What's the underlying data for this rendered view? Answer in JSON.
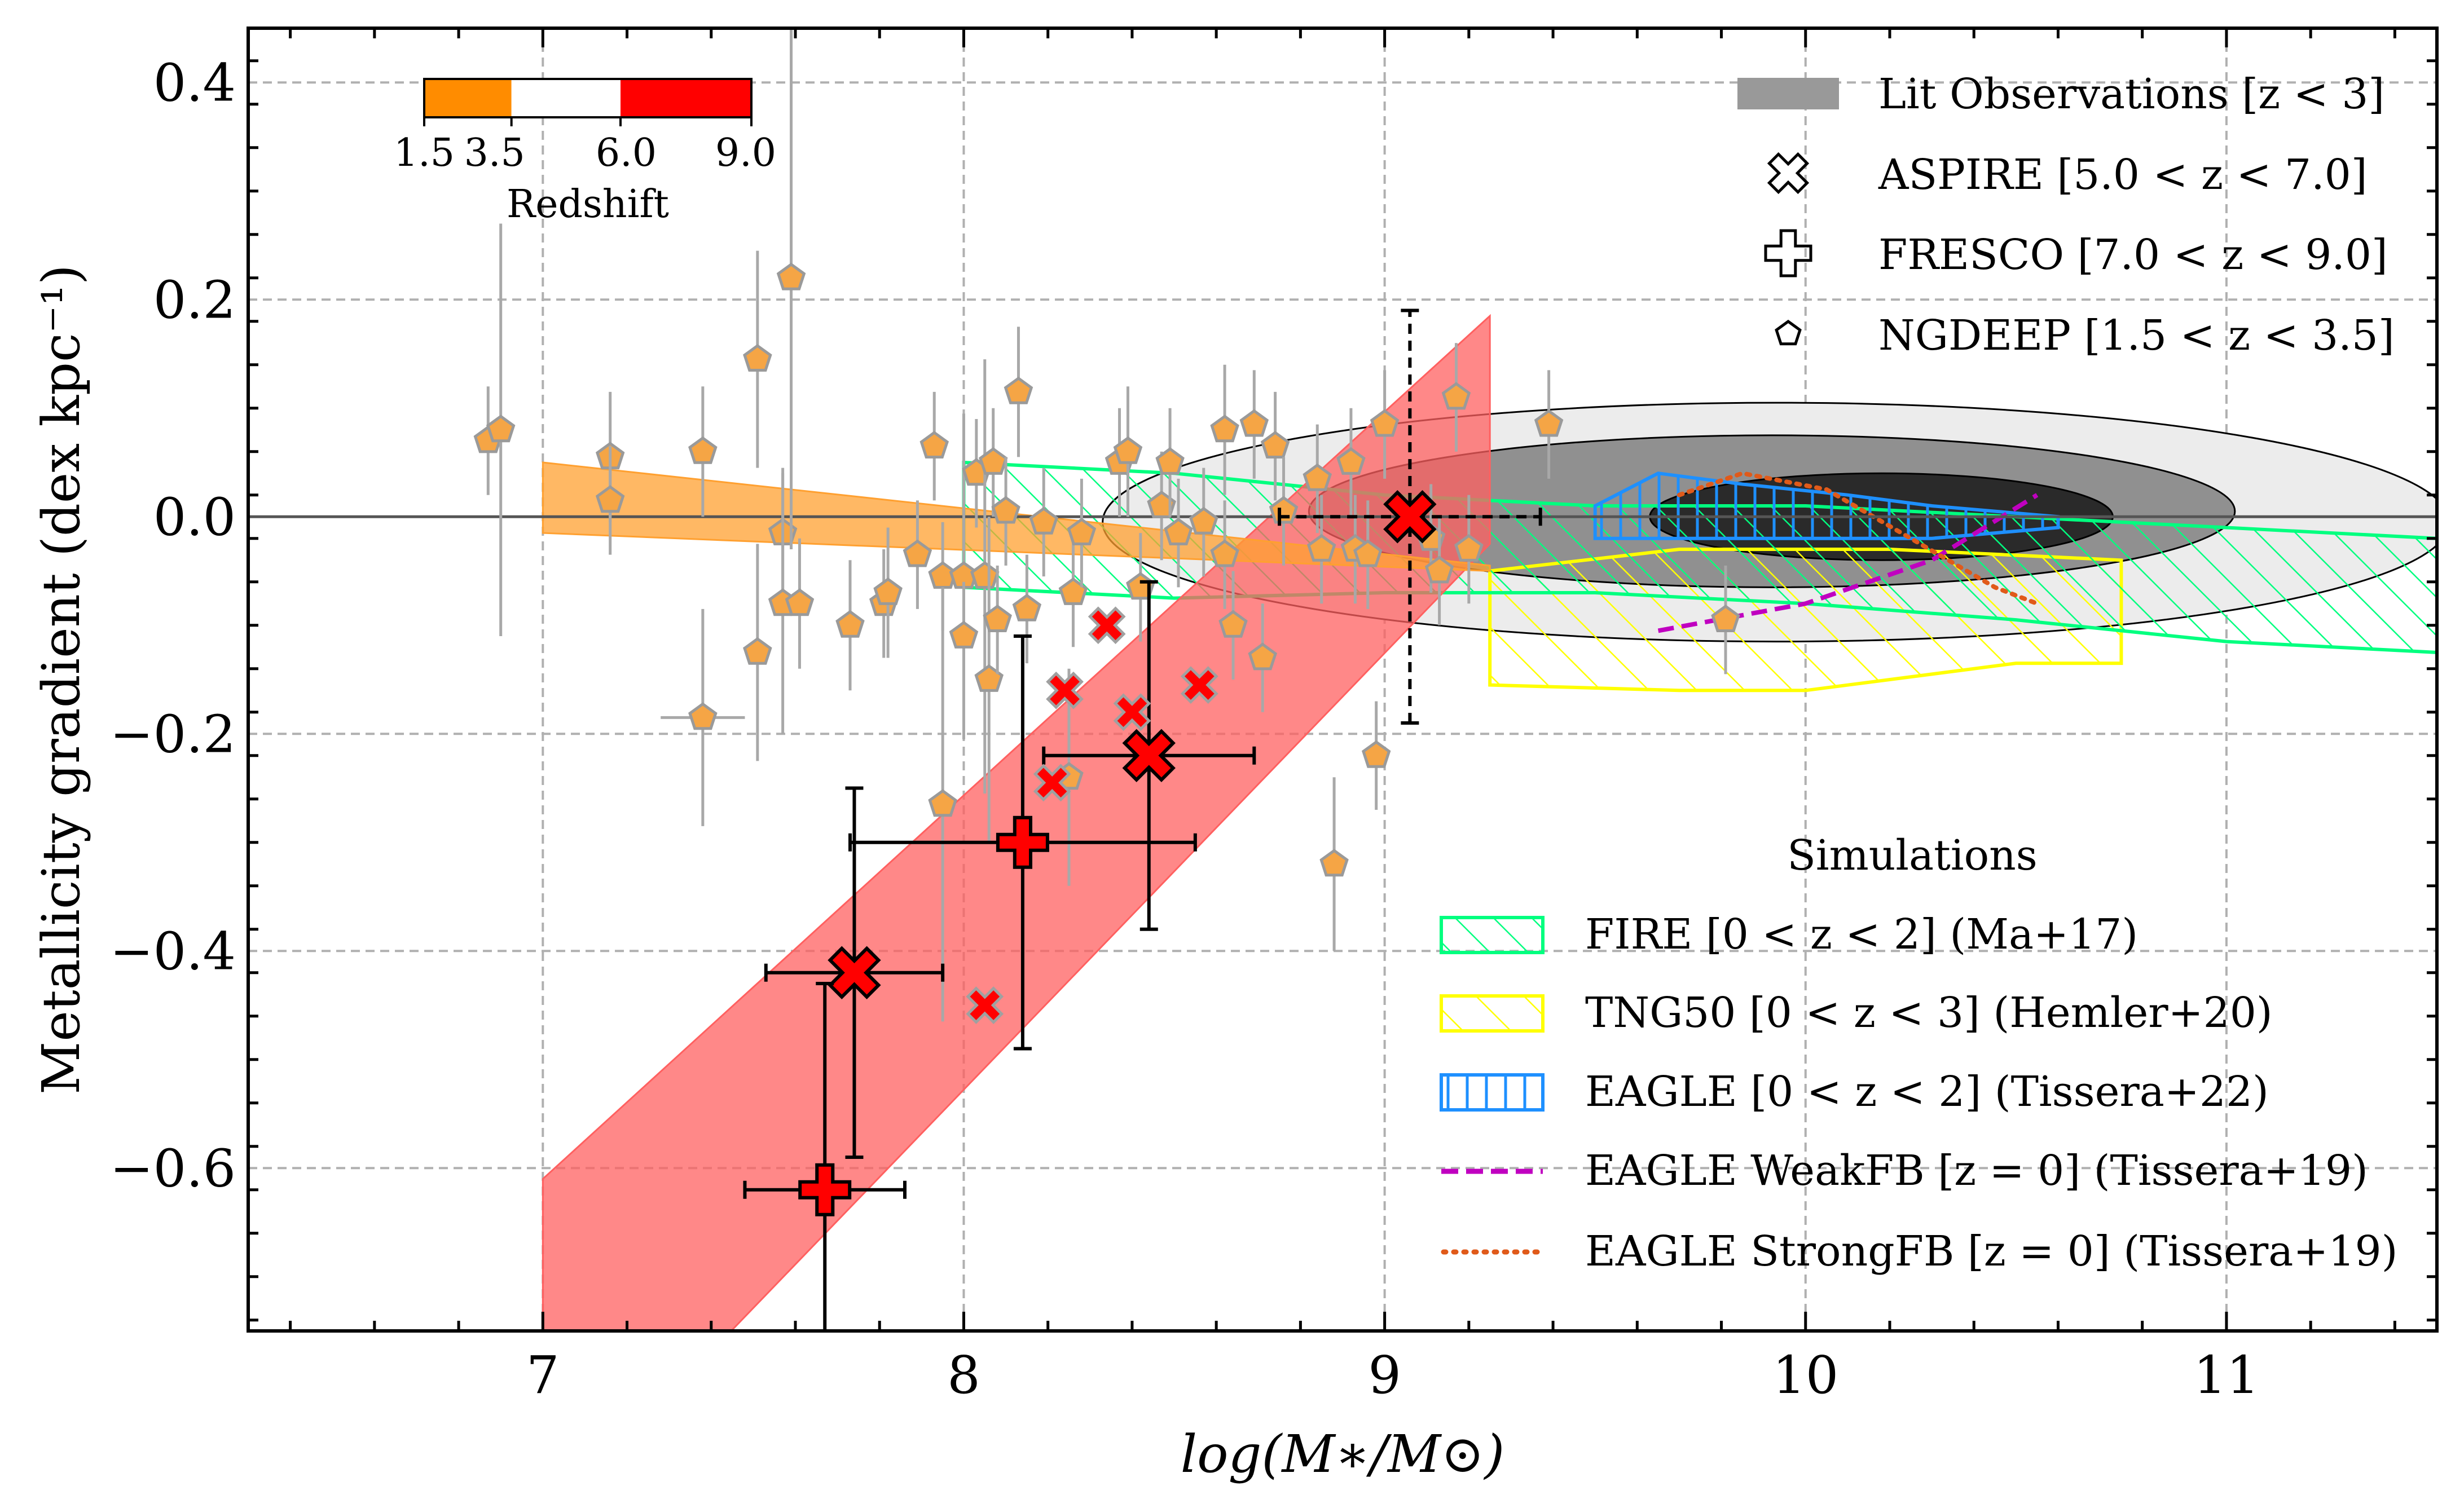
{
  "chart_data": {
    "type": "scatter",
    "xlabel": "log(M∗/M⊙)",
    "ylabel": "Metallicity gradient (dex kpc⁻¹)",
    "xlim": [
      6.3,
      11.5
    ],
    "ylim": [
      -0.75,
      0.45
    ],
    "xticks": [
      7,
      8,
      9,
      10,
      11
    ],
    "yticks": [
      -0.6,
      -0.4,
      -0.2,
      0.0,
      0.2,
      0.4
    ],
    "x_tick_labels": [
      "7",
      "8",
      "9",
      "10",
      "11"
    ],
    "y_tick_labels": [
      "−0.6",
      "−0.4",
      "−0.2",
      "0.0",
      "0.2",
      "0.4"
    ],
    "grid": true,
    "colorbar": {
      "label": "Redshift",
      "tick_labels": [
        "1.5",
        "3.5",
        "6.0",
        "9.0"
      ],
      "placement": "top-left",
      "segments": [
        {
          "from": 1.5,
          "to": 3.5,
          "color": "#ff8c00"
        },
        {
          "from": 3.5,
          "to": 6.0,
          "color": "#ffffff"
        },
        {
          "from": 6.0,
          "to": 9.0,
          "color": "#ff0000"
        }
      ]
    },
    "legend_observations": {
      "placement": "top-right",
      "entries": [
        {
          "label": "Lit Observations  [z < 3]",
          "marker": "gray-band"
        },
        {
          "label": "ASPIRE  [5.0 < z < 7.0]",
          "marker": "x-outline"
        },
        {
          "label": "FRESCO [7.0 < z < 9.0]",
          "marker": "plus-outline"
        },
        {
          "label": "NGDEEP [1.5 < z < 3.5]",
          "marker": "pentagon-outline"
        }
      ]
    },
    "legend_simulations": {
      "title": "Simulations",
      "placement": "lower-right",
      "entries": [
        {
          "label": "FIRE [0 < z < 2] (Ma+17)",
          "color": "#00ff7f",
          "style": "hatch-diagonal"
        },
        {
          "label": "TNG50 [0 < z < 3] (Hemler+20)",
          "color": "#ffff00",
          "style": "hatch-diagonal"
        },
        {
          "label": "EAGLE [0 < z < 2] (Tissera+22)",
          "color": "#1e90ff",
          "style": "hatch-vertical"
        },
        {
          "label": "EAGLE WeakFB  [z = 0] (Tissera+19)",
          "color": "#c000c0",
          "style": "dashed-line"
        },
        {
          "label": "EAGLE StrongFB [z = 0] (Tissera+19)",
          "color": "#e05a1a",
          "style": "dotted-line"
        }
      ]
    },
    "colors": {
      "ngdeep": "#f5a545",
      "ngdeep_edge": "#9a9a9a",
      "high_z": "#ff0000",
      "low_z_band": "#ffa030",
      "high_z_band": "#ff6060",
      "fire": "#00ff7f",
      "tng50": "#ffff00",
      "eagle": "#1e90ff",
      "eagle_weak": "#c000c0",
      "eagle_strong": "#e05a1a",
      "lit_outer": "#ececec",
      "lit_mid": "#909090",
      "lit_inner": "#2a2a2a"
    },
    "series": [
      {
        "name": "NGDEEP",
        "marker": "pentagon",
        "points": [
          {
            "x": 6.87,
            "y": 0.07,
            "yerr": 0.05
          },
          {
            "x": 6.9,
            "y": 0.08,
            "yerr": 0.19
          },
          {
            "x": 7.16,
            "y": 0.055,
            "yerr": 0.06
          },
          {
            "x": 7.16,
            "y": 0.015,
            "yerr": 0.05
          },
          {
            "x": 7.38,
            "y": 0.06,
            "yerr": 0.06
          },
          {
            "x": 7.38,
            "y": -0.185,
            "yerr": 0.1,
            "xerr": 0.1
          },
          {
            "x": 7.51,
            "y": 0.145,
            "yerr": 0.1
          },
          {
            "x": 7.51,
            "y": -0.125,
            "yerr": 0.1
          },
          {
            "x": 7.57,
            "y": -0.015,
            "yerr": 0.06
          },
          {
            "x": 7.57,
            "y": -0.08,
            "yerr": 0.12
          },
          {
            "x": 7.59,
            "y": 0.22,
            "yerr": 0.25
          },
          {
            "x": 7.61,
            "y": -0.08,
            "yerr": 0.06
          },
          {
            "x": 7.73,
            "y": -0.1,
            "yerr": 0.06
          },
          {
            "x": 7.81,
            "y": -0.08,
            "yerr": 0.05
          },
          {
            "x": 7.82,
            "y": -0.07,
            "yerr": 0.06
          },
          {
            "x": 7.89,
            "y": -0.035,
            "yerr": 0.05
          },
          {
            "x": 7.93,
            "y": 0.065,
            "yerr": 0.05
          },
          {
            "x": 7.95,
            "y": -0.055,
            "yerr": 0.05
          },
          {
            "x": 7.95,
            "y": -0.265,
            "yerr": 0.2
          },
          {
            "x": 8.0,
            "y": -0.055,
            "yerr": 0.15
          },
          {
            "x": 8.0,
            "y": -0.11,
            "yerr": 0.05
          },
          {
            "x": 8.03,
            "y": 0.04,
            "yerr": 0.05
          },
          {
            "x": 8.05,
            "y": -0.055,
            "yerr": 0.2
          },
          {
            "x": 8.06,
            "y": -0.15,
            "yerr": 0.15
          },
          {
            "x": 8.07,
            "y": 0.05,
            "yerr": 0.05
          },
          {
            "x": 8.08,
            "y": -0.095,
            "yerr": 0.05
          },
          {
            "x": 8.1,
            "y": 0.005,
            "yerr": 0.05
          },
          {
            "x": 8.13,
            "y": 0.115,
            "yerr": 0.06
          },
          {
            "x": 8.15,
            "y": -0.085,
            "yerr": 0.05
          },
          {
            "x": 8.19,
            "y": -0.005,
            "yerr": 0.05
          },
          {
            "x": 8.25,
            "y": -0.24,
            "yerr": 0.1
          },
          {
            "x": 8.26,
            "y": -0.07,
            "yerr": 0.05
          },
          {
            "x": 8.28,
            "y": -0.015,
            "yerr": 0.05
          },
          {
            "x": 8.37,
            "y": 0.05,
            "yerr": 0.05
          },
          {
            "x": 8.39,
            "y": 0.06,
            "yerr": 0.06
          },
          {
            "x": 8.42,
            "y": -0.065,
            "yerr": 0.05
          },
          {
            "x": 8.47,
            "y": 0.01,
            "yerr": 0.05
          },
          {
            "x": 8.49,
            "y": 0.05,
            "yerr": 0.05
          },
          {
            "x": 8.51,
            "y": -0.015,
            "yerr": 0.05
          },
          {
            "x": 8.57,
            "y": -0.005,
            "yerr": 0.05
          },
          {
            "x": 8.62,
            "y": 0.08,
            "yerr": 0.06
          },
          {
            "x": 8.62,
            "y": -0.035,
            "yerr": 0.05
          },
          {
            "x": 8.64,
            "y": -0.1,
            "yerr": 0.05
          },
          {
            "x": 8.69,
            "y": 0.085,
            "yerr": 0.05
          },
          {
            "x": 8.71,
            "y": -0.13,
            "yerr": 0.05
          },
          {
            "x": 8.74,
            "y": 0.065,
            "yerr": 0.05
          },
          {
            "x": 8.76,
            "y": 0.005,
            "yerr": 0.05
          },
          {
            "x": 8.84,
            "y": 0.035,
            "yerr": 0.05
          },
          {
            "x": 8.85,
            "y": -0.03,
            "yerr": 0.05
          },
          {
            "x": 8.88,
            "y": -0.32,
            "yerr": 0.08
          },
          {
            "x": 8.92,
            "y": 0.05,
            "yerr": 0.05
          },
          {
            "x": 8.93,
            "y": -0.03,
            "yerr": 0.05
          },
          {
            "x": 8.96,
            "y": -0.035,
            "yerr": 0.05
          },
          {
            "x": 8.98,
            "y": -0.22,
            "yerr": 0.05
          },
          {
            "x": 9.0,
            "y": 0.085,
            "yerr": 0.05
          },
          {
            "x": 9.11,
            "y": -0.02,
            "yerr": 0.05
          },
          {
            "x": 9.13,
            "y": -0.05,
            "yerr": 0.05
          },
          {
            "x": 9.17,
            "y": 0.11,
            "yerr": 0.05
          },
          {
            "x": 9.2,
            "y": -0.03,
            "yerr": 0.05
          },
          {
            "x": 9.39,
            "y": 0.085,
            "yerr": 0.05
          },
          {
            "x": 9.81,
            "y": -0.095,
            "yerr": 0.05
          }
        ]
      },
      {
        "name": "ASPIRE",
        "marker": "x",
        "points": [
          {
            "x": 7.74,
            "y": -0.42,
            "xerr": 0.21,
            "yerr": 0.17,
            "large": true
          },
          {
            "x": 8.44,
            "y": -0.22,
            "xerr": 0.25,
            "yerr": 0.16,
            "large": true
          },
          {
            "x": 9.06,
            "y": 0.0,
            "xerr": 0.31,
            "yerr": 0.19,
            "large": true,
            "dashed": true
          },
          {
            "x": 8.05,
            "y": -0.45
          },
          {
            "x": 8.21,
            "y": -0.245
          },
          {
            "x": 8.24,
            "y": -0.16
          },
          {
            "x": 8.34,
            "y": -0.1
          },
          {
            "x": 8.4,
            "y": -0.18
          },
          {
            "x": 8.56,
            "y": -0.155
          }
        ]
      },
      {
        "name": "FRESCO",
        "marker": "plus",
        "points": [
          {
            "x": 7.67,
            "y": -0.62,
            "xerr": 0.19,
            "yerr": 0.19
          },
          {
            "x": 8.14,
            "y": -0.3,
            "xerr": 0.41,
            "yerr": 0.19
          }
        ]
      }
    ],
    "bands": [
      {
        "name": "high-z fit",
        "x": [
          7.0,
          9.25
        ],
        "upper": [
          -0.61,
          0.185
        ],
        "lower": [
          -0.93,
          -0.025
        ],
        "color": "#ff6060"
      },
      {
        "name": "low-z fit",
        "x": [
          7.0,
          9.25
        ],
        "upper": [
          0.05,
          -0.045
        ],
        "lower": [
          -0.015,
          -0.05
        ],
        "color": "#ffa030"
      }
    ],
    "simulations": {
      "fire": [
        [
          8.0,
          0.05
        ],
        [
          8.5,
          0.04
        ],
        [
          9.0,
          0.02
        ],
        [
          9.5,
          0.01
        ],
        [
          10.0,
          0.01
        ],
        [
          10.5,
          0.0
        ],
        [
          11.0,
          -0.01
        ],
        [
          11.5,
          -0.02
        ],
        [
          11.5,
          -0.125
        ],
        [
          11.0,
          -0.115
        ],
        [
          10.5,
          -0.095
        ],
        [
          10.0,
          -0.08
        ],
        [
          9.5,
          -0.07
        ],
        [
          9.0,
          -0.07
        ],
        [
          8.5,
          -0.075
        ],
        [
          8.0,
          -0.065
        ]
      ],
      "tng50": [
        [
          9.25,
          -0.05
        ],
        [
          9.7,
          -0.03
        ],
        [
          10.2,
          -0.03
        ],
        [
          10.75,
          -0.04
        ],
        [
          10.75,
          -0.135
        ],
        [
          10.5,
          -0.135
        ],
        [
          10.0,
          -0.16
        ],
        [
          9.7,
          -0.16
        ],
        [
          9.25,
          -0.155
        ]
      ],
      "eagle": [
        [
          9.5,
          0.01
        ],
        [
          9.65,
          0.04
        ],
        [
          9.85,
          0.03
        ],
        [
          10.1,
          0.02
        ],
        [
          10.3,
          0.01
        ],
        [
          10.6,
          0.0
        ],
        [
          10.6,
          -0.01
        ],
        [
          10.3,
          -0.02
        ],
        [
          10.0,
          -0.02
        ],
        [
          9.5,
          -0.02
        ]
      ],
      "eagle_weak": [
        [
          9.65,
          -0.105
        ],
        [
          10.0,
          -0.08
        ],
        [
          10.3,
          -0.04
        ],
        [
          10.55,
          0.02
        ]
      ],
      "eagle_strong": [
        [
          9.7,
          0.02
        ],
        [
          9.85,
          0.04
        ],
        [
          10.05,
          0.025
        ],
        [
          10.25,
          -0.02
        ],
        [
          10.45,
          -0.065
        ],
        [
          10.55,
          -0.08
        ]
      ]
    },
    "lit_observations": {
      "outer": {
        "cx": 9.93,
        "cy": -0.005,
        "rx": 1.6,
        "ry": 0.11
      },
      "mid": {
        "cx": 9.92,
        "cy": 0.005,
        "rx": 1.1,
        "ry": 0.07
      },
      "inner": {
        "cx": 10.18,
        "cy": 0.0,
        "rx": 0.55,
        "ry": 0.04
      }
    }
  }
}
